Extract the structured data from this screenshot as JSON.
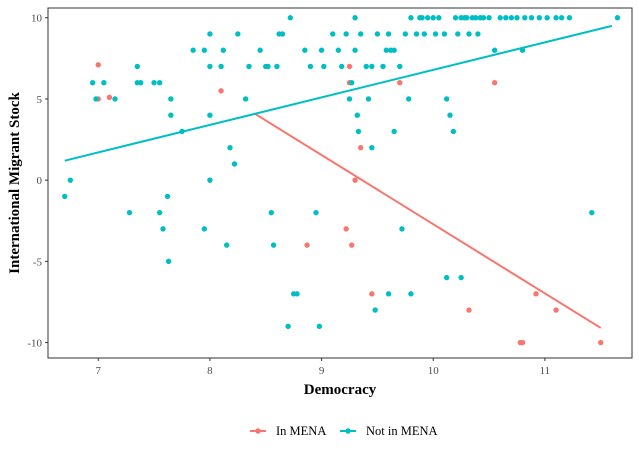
{
  "chart_data": {
    "type": "scatter",
    "title": "",
    "xlabel": "Democracy",
    "ylabel": "International Migrant Stock",
    "xlim": [
      6.55,
      11.78
    ],
    "ylim": [
      -10.95,
      10.6
    ],
    "x_ticks": [
      7,
      8,
      9,
      10,
      11
    ],
    "y_ticks": [
      -10,
      -5,
      0,
      5,
      10
    ],
    "grid": false,
    "legend_position": "bottom",
    "series": [
      {
        "name": "In MENA",
        "color": "#F8766D",
        "points": [
          [
            7.0,
            7.1
          ],
          [
            8.1,
            5.5
          ],
          [
            7.0,
            5.0
          ],
          [
            7.1,
            5.1
          ],
          [
            9.25,
            7.0
          ],
          [
            9.25,
            6.0
          ],
          [
            9.7,
            6.0
          ],
          [
            10.55,
            6.0
          ],
          [
            9.35,
            2.0
          ],
          [
            9.3,
            0.0
          ],
          [
            8.87,
            -4.0
          ],
          [
            9.22,
            -3.0
          ],
          [
            9.27,
            -4.0
          ],
          [
            9.45,
            -7.0
          ],
          [
            10.32,
            -8.0
          ],
          [
            10.92,
            -7.0
          ],
          [
            11.1,
            -8.0
          ],
          [
            10.78,
            -10.0
          ],
          [
            10.8,
            -10.0
          ],
          [
            11.5,
            -10.0
          ]
        ],
        "fit_line": [
          [
            8.4,
            4.1
          ],
          [
            11.5,
            -9.1
          ]
        ]
      },
      {
        "name": "Not in MENA",
        "color": "#00BFC4",
        "points": [
          [
            6.7,
            -1.0
          ],
          [
            6.75,
            0.0
          ],
          [
            6.95,
            6.0
          ],
          [
            6.98,
            5.0
          ],
          [
            7.05,
            6.0
          ],
          [
            7.15,
            5.0
          ],
          [
            7.28,
            -2.0
          ],
          [
            7.35,
            7.0
          ],
          [
            7.35,
            6.0
          ],
          [
            7.38,
            6.0
          ],
          [
            7.5,
            6.0
          ],
          [
            7.55,
            6.0
          ],
          [
            7.55,
            -2.0
          ],
          [
            7.58,
            -3.0
          ],
          [
            7.62,
            -1.0
          ],
          [
            7.63,
            -5.0
          ],
          [
            7.65,
            5.0
          ],
          [
            7.65,
            4.0
          ],
          [
            7.75,
            3.0
          ],
          [
            7.85,
            8.0
          ],
          [
            7.95,
            8.0
          ],
          [
            7.95,
            -3.0
          ],
          [
            8.0,
            9.0
          ],
          [
            8.0,
            7.0
          ],
          [
            8.0,
            4.0
          ],
          [
            8.0,
            0.0
          ],
          [
            8.1,
            7.0
          ],
          [
            8.12,
            8.0
          ],
          [
            8.15,
            -4.0
          ],
          [
            8.18,
            2.0
          ],
          [
            8.22,
            1.0
          ],
          [
            8.25,
            9.0
          ],
          [
            8.32,
            5.0
          ],
          [
            8.35,
            7.0
          ],
          [
            8.45,
            8.0
          ],
          [
            8.5,
            7.0
          ],
          [
            8.52,
            7.0
          ],
          [
            8.55,
            -2.0
          ],
          [
            8.57,
            -4.0
          ],
          [
            8.6,
            7.0
          ],
          [
            8.62,
            9.0
          ],
          [
            8.65,
            9.0
          ],
          [
            8.7,
            -9.0
          ],
          [
            8.72,
            10.0
          ],
          [
            8.75,
            -7.0
          ],
          [
            8.78,
            -7.0
          ],
          [
            8.85,
            8.0
          ],
          [
            8.9,
            7.0
          ],
          [
            8.95,
            -2.0
          ],
          [
            8.98,
            -9.0
          ],
          [
            9.0,
            8.0
          ],
          [
            9.02,
            7.0
          ],
          [
            9.1,
            9.0
          ],
          [
            9.15,
            8.0
          ],
          [
            9.18,
            7.0
          ],
          [
            9.22,
            9.0
          ],
          [
            9.25,
            5.0
          ],
          [
            9.27,
            6.0
          ],
          [
            9.3,
            10.0
          ],
          [
            9.3,
            8.0
          ],
          [
            9.32,
            4.0
          ],
          [
            9.33,
            3.0
          ],
          [
            9.35,
            9.0
          ],
          [
            9.4,
            7.0
          ],
          [
            9.42,
            5.0
          ],
          [
            9.45,
            2.0
          ],
          [
            9.45,
            7.0
          ],
          [
            9.48,
            -8.0
          ],
          [
            9.5,
            9.0
          ],
          [
            9.55,
            7.0
          ],
          [
            9.58,
            8.0
          ],
          [
            9.6,
            -7.0
          ],
          [
            9.6,
            9.0
          ],
          [
            9.62,
            8.0
          ],
          [
            9.65,
            3.0
          ],
          [
            9.65,
            8.0
          ],
          [
            9.7,
            7.0
          ],
          [
            9.72,
            -3.0
          ],
          [
            9.75,
            9.0
          ],
          [
            9.78,
            5.0
          ],
          [
            9.8,
            10.0
          ],
          [
            9.8,
            -7.0
          ],
          [
            9.85,
            9.0
          ],
          [
            9.88,
            10.0
          ],
          [
            9.9,
            10.0
          ],
          [
            9.92,
            9.0
          ],
          [
            9.95,
            10.0
          ],
          [
            10.0,
            10.0
          ],
          [
            10.02,
            9.0
          ],
          [
            10.05,
            10.0
          ],
          [
            10.1,
            9.0
          ],
          [
            10.12,
            -6.0
          ],
          [
            10.12,
            5.0
          ],
          [
            10.15,
            4.0
          ],
          [
            10.18,
            3.0
          ],
          [
            10.2,
            10.0
          ],
          [
            10.22,
            9.0
          ],
          [
            10.25,
            10.0
          ],
          [
            10.25,
            -6.0
          ],
          [
            10.28,
            10.0
          ],
          [
            10.3,
            10.0
          ],
          [
            10.32,
            9.0
          ],
          [
            10.35,
            10.0
          ],
          [
            10.38,
            10.0
          ],
          [
            10.4,
            9.0
          ],
          [
            10.42,
            10.0
          ],
          [
            10.45,
            10.0
          ],
          [
            10.5,
            10.0
          ],
          [
            10.55,
            8.0
          ],
          [
            10.6,
            10.0
          ],
          [
            10.65,
            10.0
          ],
          [
            10.7,
            10.0
          ],
          [
            10.75,
            10.0
          ],
          [
            10.8,
            8.0
          ],
          [
            10.82,
            10.0
          ],
          [
            10.88,
            10.0
          ],
          [
            10.95,
            10.0
          ],
          [
            11.02,
            10.0
          ],
          [
            11.1,
            10.0
          ],
          [
            11.15,
            10.0
          ],
          [
            11.22,
            10.0
          ],
          [
            11.42,
            -2.0
          ],
          [
            11.65,
            10.0
          ]
        ],
        "fit_line": [
          [
            6.7,
            1.2
          ],
          [
            11.6,
            9.5
          ]
        ]
      }
    ]
  }
}
